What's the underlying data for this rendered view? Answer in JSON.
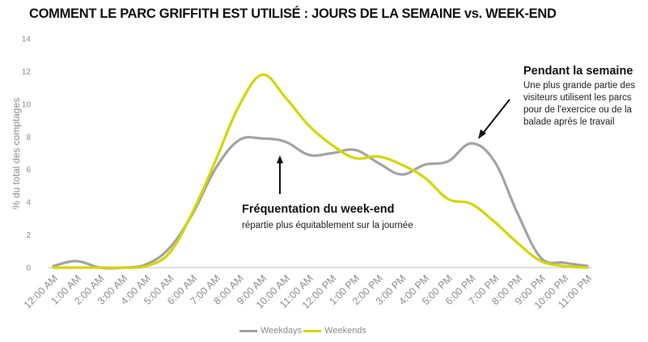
{
  "title": "COMMENT LE PARC GRIFFITH EST UTILISÉ : JOURS DE LA SEMAINE vs. WEEK-END",
  "colors": {
    "weekdays": "#a3a3a3",
    "weekends": "#d4d600",
    "grid": "#e9e9e9",
    "axis": "#bdbdbd"
  },
  "annotations": {
    "weekday": {
      "title": "Pendant la semaine",
      "lines": [
        "Une plus grande partie des",
        "visiteurs utilisent les parcs",
        "pour de l'exercice ou de la",
        "balade après le travail"
      ]
    },
    "weekend": {
      "title": "Fréquentation du week-end",
      "subtitle": "répartie plus équitablement sur la journée"
    }
  },
  "chart_data": {
    "type": "line",
    "title": "COMMENT LE PARC GRIFFITH EST UTILISÉ : JOURS DE LA SEMAINE vs. WEEK-END",
    "ylabel": "% du total des comptages",
    "xlabel": "",
    "ylim": [
      0,
      14
    ],
    "yticks": [
      0,
      2,
      4,
      6,
      8,
      10,
      12,
      14
    ],
    "grid": false,
    "legend_position": "bottom",
    "categories": [
      "12:00 AM",
      "1:00 AM",
      "2:00 AM",
      "3:00 AM",
      "4:00 AM",
      "5:00 AM",
      "6:00 AM",
      "7:00 AM",
      "8:00 AM",
      "9:00 AM",
      "10:00 AM",
      "11:00 AM",
      "12:00 PM",
      "1:00 PM",
      "2:00 PM",
      "3:00 PM",
      "4:00 PM",
      "5:00 PM",
      "6:00 PM",
      "7:00 PM",
      "8:00 PM",
      "9:00 PM",
      "10:00 PM",
      "11:00 PM"
    ],
    "series": [
      {
        "name": "Weekdays",
        "values": [
          0.1,
          0.4,
          0.0,
          0.0,
          0.2,
          1.2,
          3.3,
          6.1,
          7.8,
          7.9,
          7.7,
          6.9,
          7.0,
          7.2,
          6.4,
          5.7,
          6.3,
          6.5,
          7.6,
          6.5,
          3.3,
          0.6,
          0.3,
          0.1
        ]
      },
      {
        "name": "Weekends",
        "values": [
          0.0,
          0.0,
          0.0,
          0.0,
          0.1,
          0.9,
          3.4,
          6.6,
          9.9,
          11.8,
          10.4,
          8.7,
          7.5,
          6.7,
          6.8,
          6.3,
          5.5,
          4.2,
          3.9,
          2.8,
          1.5,
          0.4,
          0.1,
          0.0
        ]
      }
    ]
  }
}
